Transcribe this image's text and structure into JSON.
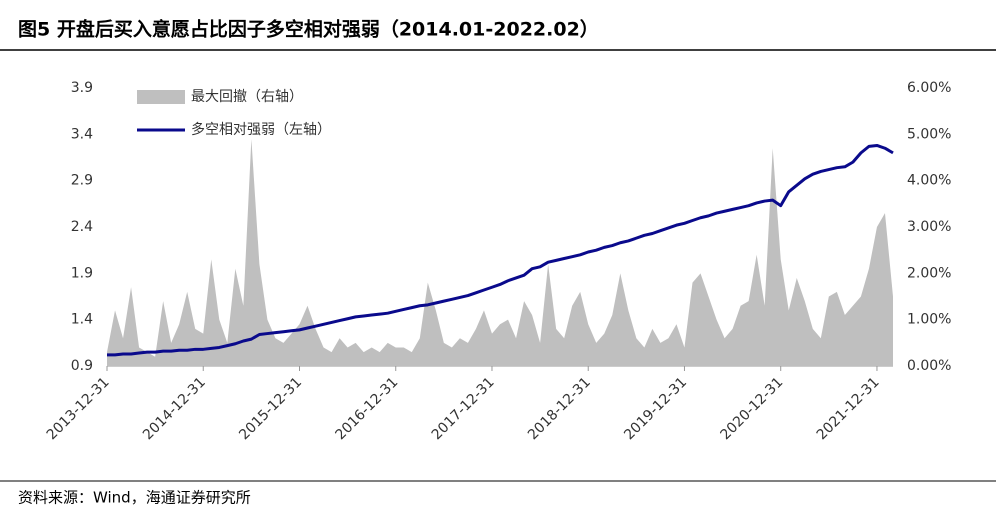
{
  "chart_data": {
    "type": "line_area",
    "title": "图5  开盘后买入意愿占比因子多空相对强弱（2014.01-2022.02）",
    "source": "资料来源：Wind，海通证券研究所",
    "x": [
      "2013-12-31",
      "2014-01-31",
      "2014-02-28",
      "2014-03-31",
      "2014-04-30",
      "2014-05-31",
      "2014-06-30",
      "2014-07-31",
      "2014-08-31",
      "2014-09-30",
      "2014-10-31",
      "2014-11-30",
      "2014-12-31",
      "2015-01-31",
      "2015-02-28",
      "2015-03-31",
      "2015-04-30",
      "2015-05-31",
      "2015-06-30",
      "2015-07-31",
      "2015-08-31",
      "2015-09-30",
      "2015-10-31",
      "2015-11-30",
      "2015-12-31",
      "2016-01-31",
      "2016-02-29",
      "2016-03-31",
      "2016-04-30",
      "2016-05-31",
      "2016-06-30",
      "2016-07-31",
      "2016-08-31",
      "2016-09-30",
      "2016-10-31",
      "2016-11-30",
      "2016-12-31",
      "2017-01-31",
      "2017-02-28",
      "2017-03-31",
      "2017-04-30",
      "2017-05-31",
      "2017-06-30",
      "2017-07-31",
      "2017-08-31",
      "2017-09-30",
      "2017-10-31",
      "2017-11-30",
      "2017-12-31",
      "2018-01-31",
      "2018-02-28",
      "2018-03-31",
      "2018-04-30",
      "2018-05-31",
      "2018-06-30",
      "2018-07-31",
      "2018-08-31",
      "2018-09-30",
      "2018-10-31",
      "2018-11-30",
      "2018-12-31",
      "2019-01-31",
      "2019-02-28",
      "2019-03-31",
      "2019-04-30",
      "2019-05-31",
      "2019-06-30",
      "2019-07-31",
      "2019-08-31",
      "2019-09-30",
      "2019-10-31",
      "2019-11-30",
      "2019-12-31",
      "2020-01-31",
      "2020-02-29",
      "2020-03-31",
      "2020-04-30",
      "2020-05-31",
      "2020-06-30",
      "2020-07-31",
      "2020-08-31",
      "2020-09-30",
      "2020-10-31",
      "2020-11-30",
      "2020-12-31",
      "2021-01-31",
      "2021-02-28",
      "2021-03-31",
      "2021-04-30",
      "2021-05-31",
      "2021-06-30",
      "2021-07-31",
      "2021-08-31",
      "2021-09-30",
      "2021-10-31",
      "2021-11-30",
      "2021-12-31",
      "2022-01-31",
      "2022-02-28"
    ],
    "xticks": [
      "2013-12-31",
      "2014-12-31",
      "2015-12-31",
      "2016-12-31",
      "2017-12-31",
      "2018-12-31",
      "2019-12-31",
      "2020-12-31",
      "2021-12-31"
    ],
    "series": [
      {
        "name": "最大回撤（右轴）",
        "kind": "area",
        "axis": "y2",
        "color": "#bfbfbf",
        "values": [
          0.3,
          1.2,
          0.6,
          1.7,
          0.4,
          0.3,
          0.2,
          1.4,
          0.5,
          0.9,
          1.6,
          0.8,
          0.7,
          2.3,
          1.0,
          0.5,
          2.1,
          1.3,
          4.9,
          2.2,
          1.0,
          0.6,
          0.5,
          0.7,
          0.9,
          1.3,
          0.8,
          0.4,
          0.3,
          0.6,
          0.4,
          0.5,
          0.3,
          0.4,
          0.3,
          0.5,
          0.4,
          0.4,
          0.3,
          0.6,
          1.8,
          1.2,
          0.5,
          0.4,
          0.6,
          0.5,
          0.8,
          1.2,
          0.7,
          0.9,
          1.0,
          0.6,
          1.4,
          1.1,
          0.5,
          2.2,
          0.8,
          0.6,
          1.3,
          1.6,
          0.9,
          0.5,
          0.7,
          1.1,
          2.0,
          1.2,
          0.6,
          0.4,
          0.8,
          0.5,
          0.6,
          0.9,
          0.4,
          1.8,
          2.0,
          1.5,
          1.0,
          0.6,
          0.8,
          1.3,
          1.4,
          2.4,
          1.3,
          4.7,
          2.3,
          1.2,
          1.9,
          1.4,
          0.8,
          0.6,
          1.5,
          1.6,
          1.1,
          1.3,
          1.5,
          2.1,
          3.0,
          3.3,
          1.5
        ]
      },
      {
        "name": "多空相对强弱（左轴）",
        "kind": "line",
        "axis": "y",
        "color": "#0a0a8c",
        "values": [
          1.02,
          1.02,
          1.03,
          1.03,
          1.04,
          1.05,
          1.05,
          1.06,
          1.06,
          1.07,
          1.07,
          1.08,
          1.08,
          1.09,
          1.1,
          1.12,
          1.14,
          1.17,
          1.19,
          1.24,
          1.25,
          1.26,
          1.27,
          1.28,
          1.29,
          1.31,
          1.33,
          1.35,
          1.37,
          1.39,
          1.41,
          1.43,
          1.44,
          1.45,
          1.46,
          1.47,
          1.49,
          1.51,
          1.53,
          1.55,
          1.56,
          1.58,
          1.6,
          1.62,
          1.64,
          1.66,
          1.69,
          1.72,
          1.75,
          1.78,
          1.82,
          1.85,
          1.88,
          1.95,
          1.97,
          2.02,
          2.04,
          2.06,
          2.08,
          2.1,
          2.13,
          2.15,
          2.18,
          2.2,
          2.23,
          2.25,
          2.28,
          2.31,
          2.33,
          2.36,
          2.39,
          2.42,
          2.44,
          2.47,
          2.5,
          2.52,
          2.55,
          2.57,
          2.59,
          2.61,
          2.63,
          2.66,
          2.68,
          2.69,
          2.63,
          2.78,
          2.85,
          2.92,
          2.97,
          3.0,
          3.02,
          3.04,
          3.05,
          3.1,
          3.2,
          3.27,
          3.28,
          3.25,
          3.2
        ]
      }
    ],
    "ylim": [
      0.9,
      3.9
    ],
    "yticks": [
      0.9,
      1.4,
      1.9,
      2.4,
      2.9,
      3.4,
      3.9
    ],
    "y2lim": [
      0,
      6
    ],
    "y2ticks": [
      {
        "value": 0,
        "label": "0.00%"
      },
      {
        "value": 1,
        "label": "1.00%"
      },
      {
        "value": 2,
        "label": "2.00%"
      },
      {
        "value": 3,
        "label": "3.00%"
      },
      {
        "value": 4,
        "label": "4.00%"
      },
      {
        "value": 5,
        "label": "5.00%"
      },
      {
        "value": 6,
        "label": "6.00%"
      }
    ],
    "grid": false
  }
}
